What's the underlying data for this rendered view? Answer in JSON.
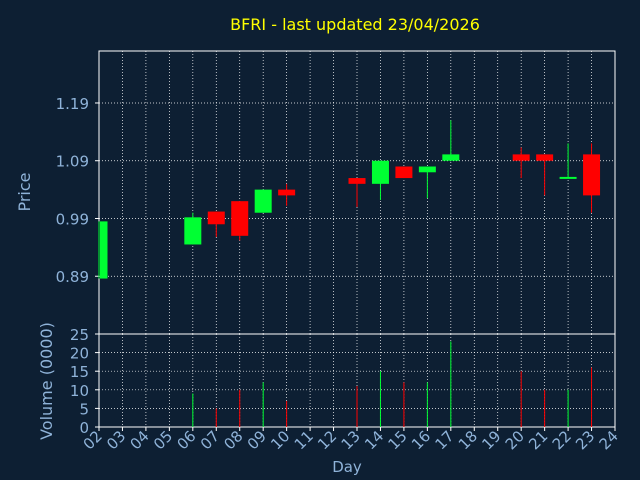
{
  "chart_data": {
    "type": "candlestick",
    "title": "BFRI - last updated 23/04/2026",
    "price_panel": {
      "ylabel": "Price",
      "ylim": [
        0.79,
        1.28
      ],
      "yticks": [
        0.89,
        0.99,
        1.09,
        1.19
      ],
      "ytick_labels": [
        "0.89",
        "0.99",
        "1.09",
        "1.19"
      ]
    },
    "volume_panel": {
      "ylabel": "Volume (0000)",
      "ylim": [
        0,
        25
      ],
      "yticks": [
        0,
        5,
        10,
        15,
        20,
        25
      ],
      "ytick_labels": [
        "0",
        "5",
        "10",
        "15",
        "20",
        "25"
      ]
    },
    "xlabel": "Day",
    "x_categories": [
      "02",
      "03",
      "04",
      "05",
      "06",
      "07",
      "08",
      "09",
      "10",
      "11",
      "12",
      "13",
      "14",
      "15",
      "16",
      "17",
      "18",
      "19",
      "20",
      "21",
      "22",
      "23",
      "24"
    ],
    "grid": true,
    "candles": [
      {
        "day": "02",
        "open": 0.886,
        "close": 0.985,
        "high": 0.985,
        "low": 0.886,
        "volume": 0
      },
      {
        "day": "06",
        "open": 0.945,
        "close": 0.992,
        "high": 1.0,
        "low": 0.945,
        "volume": 9
      },
      {
        "day": "07",
        "open": 1.002,
        "close": 0.98,
        "high": 1.002,
        "low": 0.958,
        "volume": 5
      },
      {
        "day": "08",
        "open": 1.02,
        "close": 0.96,
        "high": 1.02,
        "low": 0.952,
        "volume": 10
      },
      {
        "day": "09",
        "open": 1.0,
        "close": 1.04,
        "high": 1.04,
        "low": 1.0,
        "volume": 12
      },
      {
        "day": "10",
        "open": 1.04,
        "close": 1.03,
        "high": 1.05,
        "low": 1.012,
        "volume": 7
      },
      {
        "day": "13",
        "open": 1.06,
        "close": 1.05,
        "high": 1.06,
        "low": 1.01,
        "volume": 11
      },
      {
        "day": "14",
        "open": 1.05,
        "close": 1.09,
        "high": 1.09,
        "low": 1.022,
        "volume": 15
      },
      {
        "day": "15",
        "open": 1.08,
        "close": 1.06,
        "high": 1.08,
        "low": 1.06,
        "volume": 12
      },
      {
        "day": "16",
        "open": 1.07,
        "close": 1.08,
        "high": 1.08,
        "low": 1.025,
        "volume": 12
      },
      {
        "day": "17",
        "open": 1.09,
        "close": 1.101,
        "high": 1.16,
        "low": 1.09,
        "volume": 23
      },
      {
        "day": "20",
        "open": 1.101,
        "close": 1.09,
        "high": 1.113,
        "low": 1.06,
        "volume": 15
      },
      {
        "day": "21",
        "open": 1.101,
        "close": 1.09,
        "high": 1.101,
        "low": 1.03,
        "volume": 10
      },
      {
        "day": "22",
        "open": 1.06,
        "close": 1.062,
        "high": 1.12,
        "low": 1.06,
        "volume": 10
      },
      {
        "day": "23",
        "open": 1.101,
        "close": 1.03,
        "high": 1.12,
        "low": 1.0,
        "volume": 16
      }
    ],
    "colors": {
      "up": "#00ff33",
      "down": "#ff0000",
      "background": "#0d1f33",
      "text": "#8fb3d9",
      "title": "#ffff00",
      "grid": "#ffffff",
      "axis": "#ffffff"
    }
  }
}
